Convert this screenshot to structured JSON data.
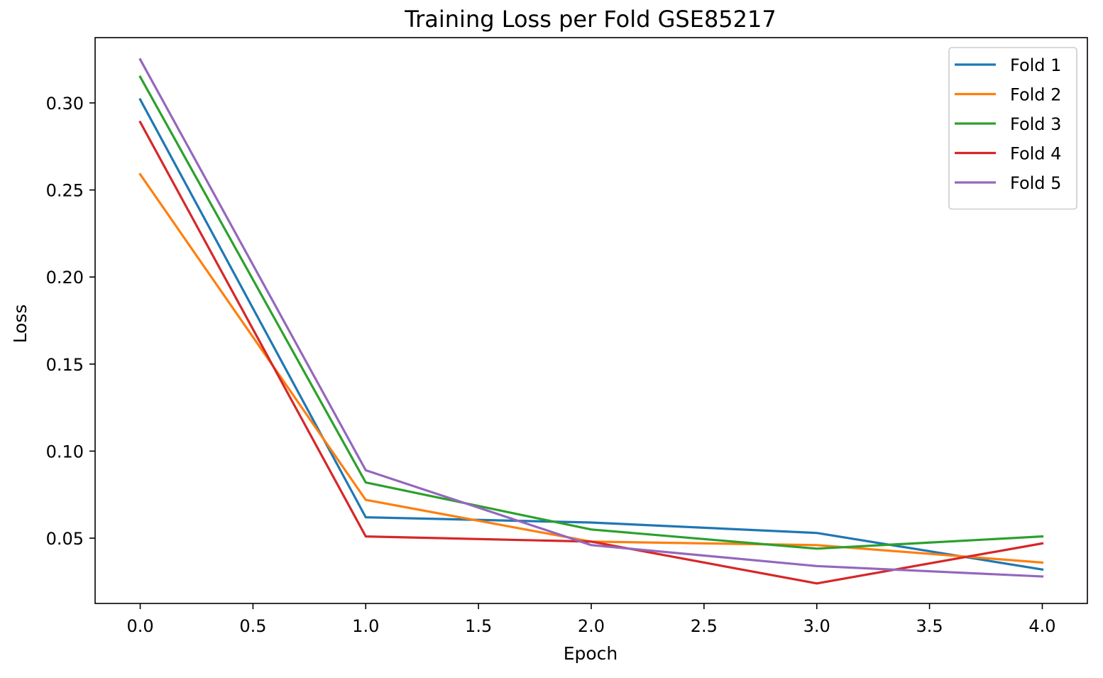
{
  "chart_data": {
    "type": "line",
    "title": "Training Loss per Fold GSE85217",
    "xlabel": "Epoch",
    "ylabel": "Loss",
    "x": [
      0,
      1,
      2,
      3,
      4
    ],
    "xlim": [
      -0.2,
      4.2
    ],
    "ylim": [
      0.0125,
      0.3375
    ],
    "xticks": [
      0.0,
      0.5,
      1.0,
      1.5,
      2.0,
      2.5,
      3.0,
      3.5,
      4.0
    ],
    "xtick_labels": [
      "0.0",
      "0.5",
      "1.0",
      "1.5",
      "2.0",
      "2.5",
      "3.0",
      "3.5",
      "4.0"
    ],
    "yticks": [
      0.05,
      0.1,
      0.15,
      0.2,
      0.25,
      0.3
    ],
    "ytick_labels": [
      "0.05",
      "0.10",
      "0.15",
      "0.20",
      "0.25",
      "0.30"
    ],
    "grid": false,
    "legend_position": "top-right",
    "series": [
      {
        "name": "Fold 1",
        "color": "#1f77b4",
        "values": [
          0.302,
          0.062,
          0.059,
          0.053,
          0.032
        ]
      },
      {
        "name": "Fold 2",
        "color": "#ff7f0e",
        "values": [
          0.259,
          0.072,
          0.048,
          0.046,
          0.036
        ]
      },
      {
        "name": "Fold 3",
        "color": "#2ca02c",
        "values": [
          0.315,
          0.082,
          0.055,
          0.044,
          0.051
        ]
      },
      {
        "name": "Fold 4",
        "color": "#d62728",
        "values": [
          0.289,
          0.051,
          0.048,
          0.024,
          0.047
        ]
      },
      {
        "name": "Fold 5",
        "color": "#9467bd",
        "values": [
          0.325,
          0.089,
          0.046,
          0.034,
          0.028
        ]
      }
    ]
  }
}
